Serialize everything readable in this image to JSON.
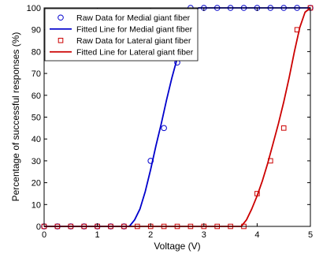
{
  "chart_data": {
    "type": "line",
    "xlabel": "Voltage (V)",
    "ylabel": "Percentage of successful responses (%)",
    "xlim": [
      0,
      5
    ],
    "ylim": [
      0,
      100
    ],
    "x_ticks": [
      "0",
      "1",
      "2",
      "3",
      "4",
      "5"
    ],
    "y_ticks": [
      "0",
      "10",
      "20",
      "30",
      "40",
      "50",
      "60",
      "70",
      "80",
      "90",
      "100"
    ],
    "grid": false,
    "legend_position": "top-left",
    "series": [
      {
        "name": "Raw Data for Medial giant fiber",
        "kind": "markers",
        "marker": "circle",
        "color": "#0000cc",
        "points": [
          [
            0,
            0
          ],
          [
            0.25,
            0
          ],
          [
            0.5,
            0
          ],
          [
            0.75,
            0
          ],
          [
            1.0,
            0
          ],
          [
            1.25,
            0
          ],
          [
            1.5,
            0
          ],
          [
            2.0,
            30
          ],
          [
            2.25,
            45
          ],
          [
            2.5,
            75
          ],
          [
            2.75,
            100
          ],
          [
            3.0,
            100
          ],
          [
            3.25,
            100
          ],
          [
            3.5,
            100
          ],
          [
            3.75,
            100
          ],
          [
            4.0,
            100
          ],
          [
            4.25,
            100
          ],
          [
            4.5,
            100
          ],
          [
            4.75,
            100
          ],
          [
            5.0,
            100
          ]
        ]
      },
      {
        "name": "Fitted Line for Medial giant fiber",
        "kind": "line",
        "color": "#0000cc",
        "points": [
          [
            0,
            0
          ],
          [
            1.6,
            0
          ],
          [
            1.7,
            3
          ],
          [
            1.8,
            8
          ],
          [
            1.9,
            16
          ],
          [
            2.0,
            26
          ],
          [
            2.1,
            37
          ],
          [
            2.2,
            47
          ],
          [
            2.3,
            58
          ],
          [
            2.4,
            68
          ],
          [
            2.5,
            77
          ],
          [
            2.6,
            86
          ],
          [
            2.7,
            93
          ],
          [
            2.8,
            98
          ],
          [
            2.9,
            100
          ],
          [
            5.0,
            100
          ]
        ]
      },
      {
        "name": "Raw Data for Lateral giant fiber",
        "kind": "markers",
        "marker": "square",
        "color": "#cc0000",
        "points": [
          [
            0,
            0
          ],
          [
            0.25,
            0
          ],
          [
            0.5,
            0
          ],
          [
            0.75,
            0
          ],
          [
            1.0,
            0
          ],
          [
            1.25,
            0
          ],
          [
            1.5,
            0
          ],
          [
            1.75,
            0
          ],
          [
            2.0,
            0
          ],
          [
            2.25,
            0
          ],
          [
            2.5,
            0
          ],
          [
            2.75,
            0
          ],
          [
            3.0,
            0
          ],
          [
            3.25,
            0
          ],
          [
            3.5,
            0
          ],
          [
            3.75,
            0
          ],
          [
            4.0,
            15
          ],
          [
            4.25,
            30
          ],
          [
            4.5,
            45
          ],
          [
            4.75,
            90
          ],
          [
            5.0,
            100
          ]
        ]
      },
      {
        "name": "Fitted Line for Lateral giant fiber",
        "kind": "line",
        "color": "#cc0000",
        "points": [
          [
            0,
            0
          ],
          [
            3.7,
            0
          ],
          [
            3.8,
            3
          ],
          [
            3.9,
            8
          ],
          [
            4.0,
            14
          ],
          [
            4.1,
            21
          ],
          [
            4.2,
            29
          ],
          [
            4.3,
            38
          ],
          [
            4.4,
            47
          ],
          [
            4.5,
            57
          ],
          [
            4.6,
            68
          ],
          [
            4.7,
            80
          ],
          [
            4.8,
            91
          ],
          [
            4.9,
            98
          ],
          [
            5.0,
            100
          ]
        ]
      }
    ]
  }
}
